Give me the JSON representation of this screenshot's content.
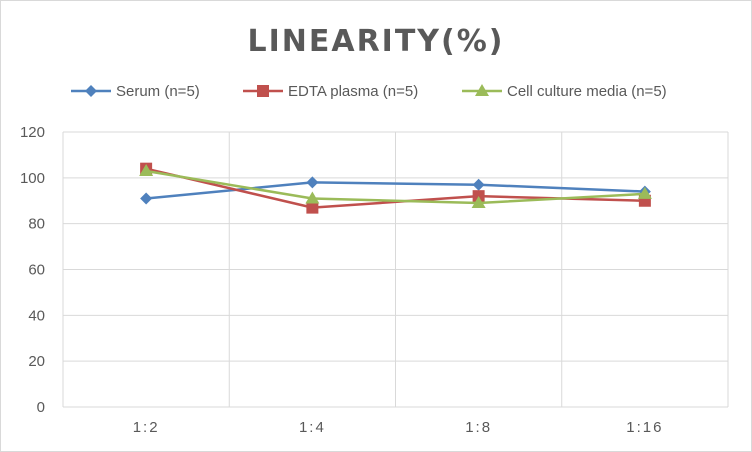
{
  "chart_data": {
    "type": "line",
    "title": "LINEARITY(%)",
    "categories": [
      "1:2",
      "1:4",
      "1:8",
      "1:16"
    ],
    "series": [
      {
        "name": "Serum (n=5)",
        "values": [
          91,
          98,
          97,
          94
        ],
        "color": "#4f81bd",
        "marker": "diamond"
      },
      {
        "name": "EDTA plasma (n=5)",
        "values": [
          104,
          87,
          92,
          90
        ],
        "color": "#c0504d",
        "marker": "square"
      },
      {
        "name": "Cell culture media (n=5)",
        "values": [
          103,
          91,
          89,
          93
        ],
        "color": "#9bbb59",
        "marker": "triangle"
      }
    ],
    "ylim": [
      0,
      120
    ],
    "yticks": [
      0,
      20,
      40,
      60,
      80,
      100,
      120
    ],
    "grid": true,
    "legend_position": "top"
  }
}
